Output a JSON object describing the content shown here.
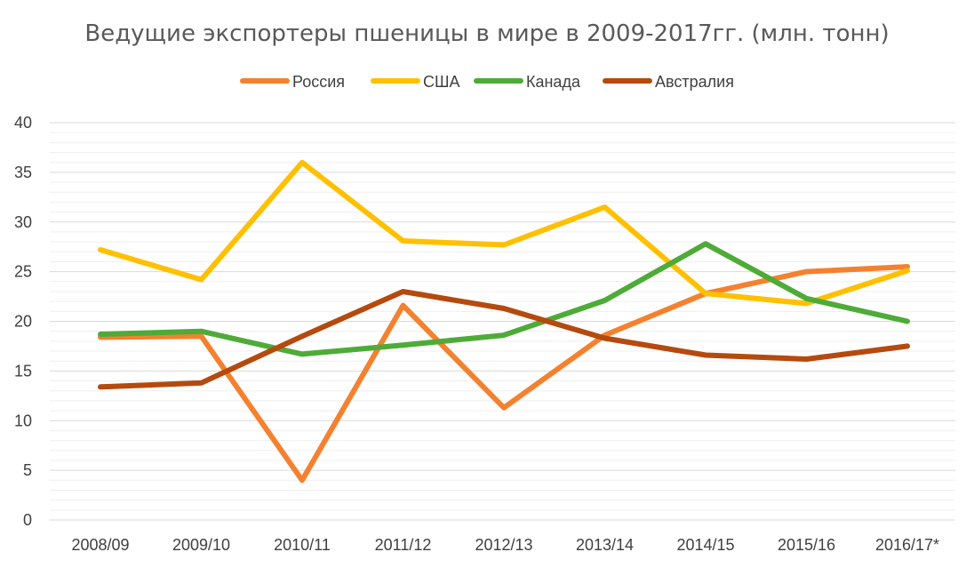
{
  "chart_data": {
    "type": "line",
    "title": "Ведущие экспортеры пшеницы в мире в 2009-2017гг. (млн. тонн)",
    "xlabel": "",
    "ylabel": "",
    "categories": [
      "2008/09",
      "2009/10",
      "2010/11",
      "2011/12",
      "2012/13",
      "2013/14",
      "2014/15",
      "2015/16",
      "2016/17*"
    ],
    "ylim": [
      0,
      40
    ],
    "yticks": [
      "0",
      "5",
      "10",
      "15",
      "20",
      "25",
      "30",
      "35",
      "40"
    ],
    "grid": true,
    "legend_position": "top",
    "series": [
      {
        "name": "Россия",
        "color": "#f4812f",
        "values": [
          18.4,
          18.5,
          4.0,
          21.6,
          11.3,
          18.6,
          22.8,
          25.0,
          25.5
        ]
      },
      {
        "name": "США",
        "color": "#ffc000",
        "values": [
          27.2,
          24.2,
          36.0,
          28.1,
          27.7,
          31.5,
          22.8,
          21.8,
          25.1
        ]
      },
      {
        "name": "Канада",
        "color": "#4eab38",
        "values": [
          18.7,
          19.0,
          16.7,
          17.6,
          18.6,
          22.1,
          27.8,
          22.3,
          20.0
        ]
      },
      {
        "name": "Австралия",
        "color": "#b54a0e",
        "values": [
          13.4,
          13.8,
          18.5,
          23.0,
          21.3,
          18.3,
          16.6,
          16.2,
          17.5
        ]
      }
    ]
  }
}
